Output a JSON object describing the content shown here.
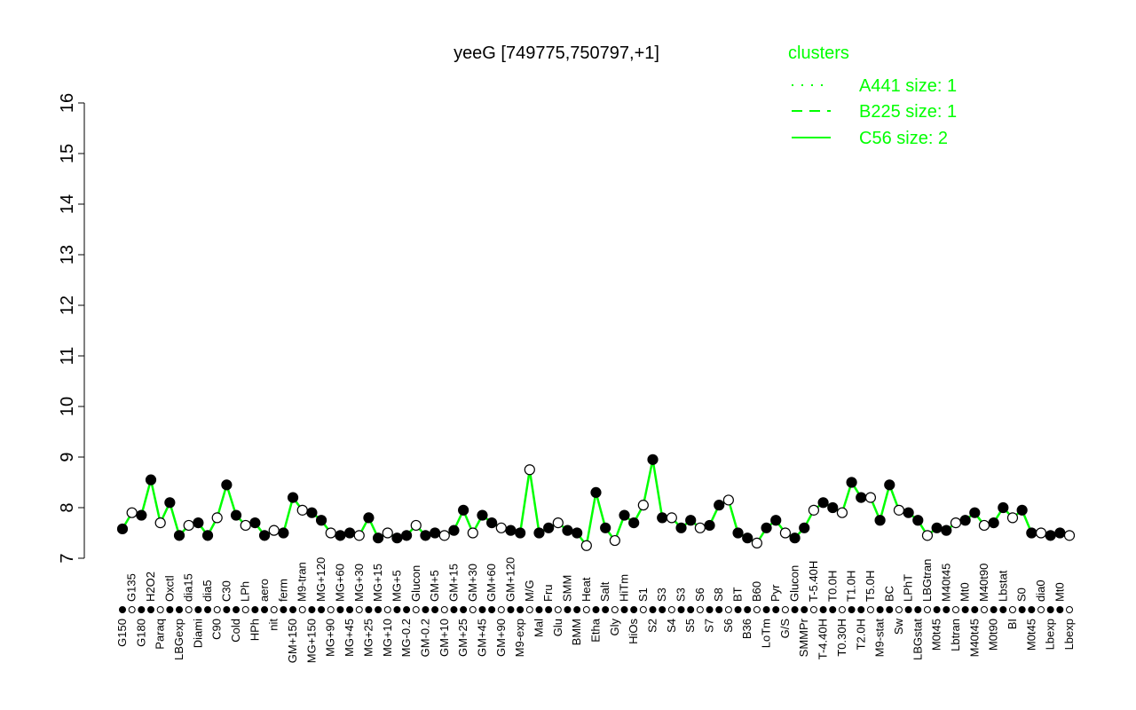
{
  "chart_data": {
    "type": "line",
    "title": "yeeG [749775,750797,+1]",
    "xlabel": "",
    "ylabel": "",
    "ylim": [
      7,
      16
    ],
    "yticks": [
      7,
      8,
      9,
      10,
      11,
      12,
      13,
      14,
      15,
      16
    ],
    "grid": false,
    "legend": {
      "title": "clusters",
      "placement": "top-right",
      "color": "#00ff00",
      "entries": [
        {
          "label": "A441 size: 1",
          "style": "dotted"
        },
        {
          "label": "B225 size: 1",
          "style": "dashed"
        },
        {
          "label": "C56 size: 2",
          "style": "solid"
        }
      ]
    },
    "line_color": "#00ff00",
    "point_color": "#000000",
    "categories": [
      "G150",
      "G135",
      "G180",
      "H2O2",
      "Paraq",
      "Oxctl",
      "LBGexp",
      "dia15",
      "Diami",
      "dia5",
      "C90",
      "C30",
      "Cold",
      "LPh",
      "HPh",
      "aero",
      "nit",
      "ferm",
      "GM+150",
      "M9-tran",
      "MG+150",
      "MG+120",
      "MG+90",
      "MG+60",
      "MG+45",
      "MG+30",
      "MG+25",
      "MG+15",
      "MG+10",
      "MG+5",
      "MG-0.2",
      "Glucon",
      "GM-0.2",
      "GM+5",
      "GM+10",
      "GM+15",
      "GM+25",
      "GM+30",
      "GM+45",
      "GM+60",
      "GM+90",
      "GM+120",
      "M9-exp",
      "M/G",
      "Mal",
      "Fru",
      "Glu",
      "SMM",
      "BMM",
      "Heat",
      "Etha",
      "Salt",
      "Gly",
      "HiTm",
      "HiOs",
      "S1",
      "S2",
      "S3",
      "S4",
      "S3",
      "S5",
      "S6",
      "S7",
      "S8",
      "S6",
      "BT",
      "B36",
      "B60",
      "LoTm",
      "Pyr",
      "G/S",
      "Glucon",
      "SMMPr",
      "T-5.40H",
      "T-4.40H",
      "T0.0H",
      "T0.30H",
      "T1.0H",
      "T2.0H",
      "T5.0H",
      "M9-stat",
      "BC",
      "Sw",
      "LPhT",
      "LBGstat",
      "LBGtran",
      "M0t45",
      "M40t45",
      "Lbtran",
      "Mt0",
      "M40t45",
      "M40t90",
      "M0t90",
      "Lbstat",
      "BI",
      "S0",
      "M0t45",
      "dia0",
      "Lbexp",
      "Mt0",
      "Lbexp"
    ],
    "values": [
      7.58,
      7.9,
      7.85,
      8.55,
      7.7,
      8.1,
      7.45,
      7.65,
      7.7,
      7.45,
      7.8,
      8.45,
      7.85,
      7.65,
      7.7,
      7.45,
      7.55,
      7.5,
      8.2,
      7.95,
      7.9,
      7.75,
      7.5,
      7.45,
      7.5,
      7.45,
      7.8,
      7.4,
      7.5,
      7.4,
      7.45,
      7.65,
      7.45,
      7.5,
      7.45,
      7.55,
      7.95,
      7.5,
      7.85,
      7.7,
      7.6,
      7.55,
      7.5,
      8.75,
      7.5,
      7.6,
      7.7,
      7.55,
      7.5,
      7.25,
      8.3,
      7.6,
      7.35,
      7.85,
      7.7,
      8.05,
      8.95,
      7.8,
      7.8,
      7.6,
      7.75,
      7.6,
      7.65,
      8.05,
      8.15,
      7.5,
      7.4,
      7.3,
      7.6,
      7.75,
      7.5,
      7.4,
      7.6,
      7.95,
      8.1,
      8.0,
      7.9,
      8.5,
      8.2,
      8.2,
      7.75,
      8.45,
      7.95,
      7.9,
      7.75,
      7.45,
      7.6,
      7.55,
      7.7,
      7.75,
      7.9,
      7.65,
      7.7,
      8.0,
      7.8,
      7.95,
      7.5,
      7.5,
      7.45,
      7.5,
      7.45
    ]
  }
}
